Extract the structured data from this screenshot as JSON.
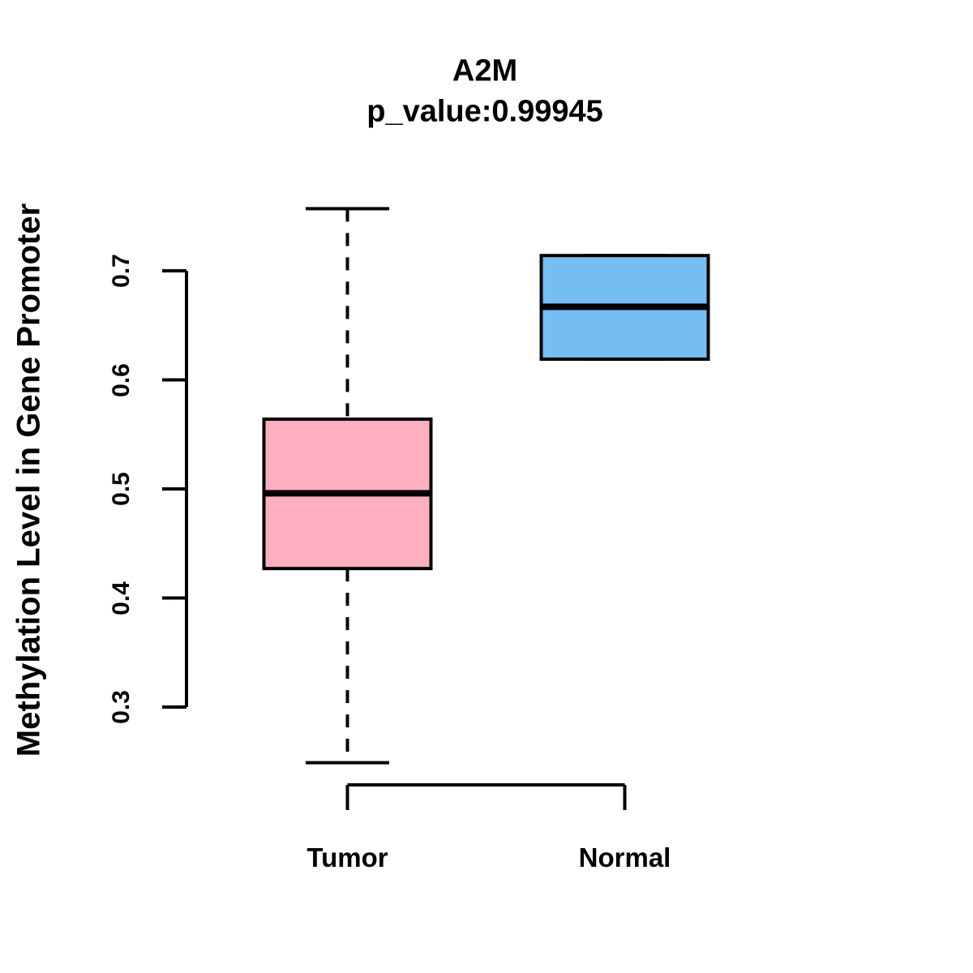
{
  "figure": {
    "title": "A2M",
    "subtitle": "p_value:0.99945",
    "ylabel": "Methylation Level in Gene Promoter",
    "p_value": 0.99945,
    "background": "#FFFFFF",
    "line_color": "#000000"
  },
  "chart_data": {
    "type": "boxplot",
    "title": "A2M",
    "subtitle": "p_value:0.99945",
    "xlabel": "",
    "ylabel": "Methylation Level in Gene Promoter",
    "categories": [
      "Tumor",
      "Normal"
    ],
    "y_ticks": [
      0.3,
      0.4,
      0.5,
      0.6,
      0.7
    ],
    "y_tick_labels": [
      "0.3",
      "0.4",
      "0.5",
      "0.6",
      "0.7"
    ],
    "ylim": [
      0.24,
      0.77
    ],
    "grid": false,
    "legend": false,
    "groups": [
      {
        "name": "Tumor",
        "fill": "#FFAFC0",
        "whisker_low": 0.249,
        "q1": 0.427,
        "median": 0.496,
        "q3": 0.564,
        "whisker_high": 0.757
      },
      {
        "name": "Normal",
        "fill": "#75BEF2",
        "whisker_low": 0.619,
        "q1": 0.619,
        "median": 0.667,
        "q3": 0.714,
        "whisker_high": 0.714
      }
    ],
    "box_border_color": "#000000",
    "median_color": "#000000"
  }
}
